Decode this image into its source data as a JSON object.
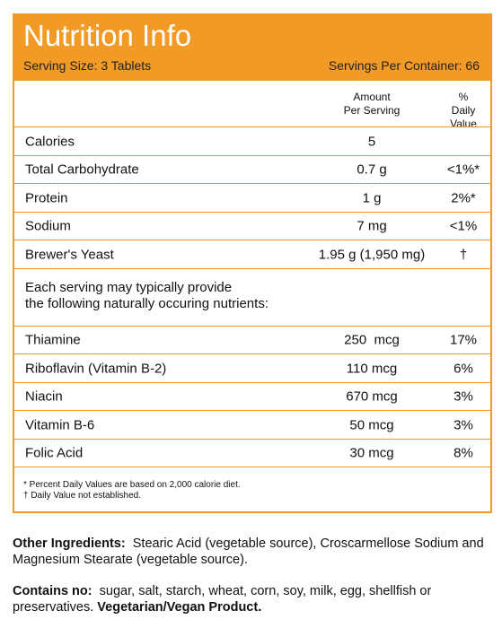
{
  "header": {
    "title": "Nutrition Info",
    "serving_size": "Serving Size: 3 Tablets",
    "servings_per_container": "Servings Per Container: 66"
  },
  "table": {
    "columns": [
      [
        "Amount",
        "Per Serving"
      ],
      [
        "% Daily",
        "Value"
      ]
    ],
    "rows": [
      [
        "Calories",
        "5"
      ],
      [
        "Total Carbohydrate",
        "0.7 g",
        "<1%*"
      ],
      [
        "Protein",
        "1 g",
        "2%*"
      ],
      [
        "Sodium",
        "7 mg",
        "<1%"
      ],
      [
        "Brewer's Yeast",
        "1.95 g (1,950 mg)",
        "†"
      ]
    ]
  },
  "note": [
    "Each serving may typically provide",
    "the following naturally occuring nutrients:"
  ],
  "nutrients": [
    [
      "Thiamine",
      "250  mcg",
      "17%"
    ],
    [
      "Riboflavin (Vitamin B-2)",
      "110 mcg",
      "6%"
    ],
    [
      "Niacin",
      "670 mcg",
      "3%"
    ],
    [
      "Vitamin B-6",
      "50 mcg",
      "3%"
    ],
    [
      "Folic Acid",
      "30 mcg",
      "8%"
    ]
  ],
  "footnotes": [
    "* Percent Daily Values are based on 2,000 calorie diet.",
    "† Daily Value not established."
  ],
  "other_ingredients": {
    "label": "Other Ingredients:",
    "text": "Stearic Acid (vegetable source), Croscarmellose Sodium and Magnesium Stearate (vegetable source)."
  },
  "contains": {
    "label": "Contains no:",
    "text": "sugar, salt, starch, wheat, corn, soy, milk, egg, shellfish or preservatives.",
    "emphasis": "Vegetarian/Vegan Product."
  }
}
